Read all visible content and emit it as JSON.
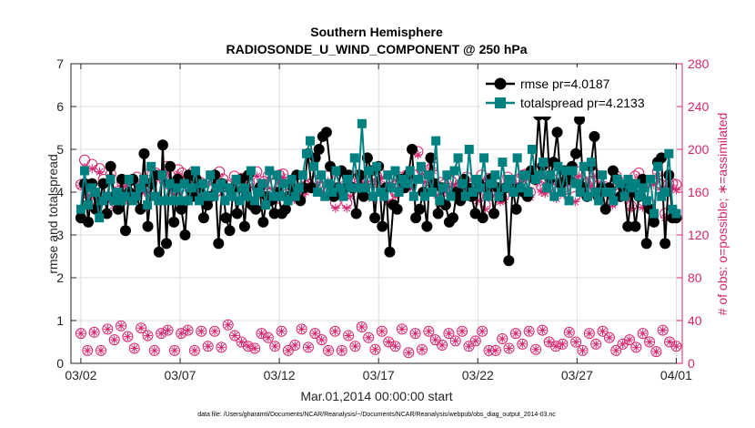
{
  "chart_data": {
    "type": "line",
    "title": "Southern Hemisphere",
    "subtitle": "RADIOSONDE_U_WIND_COMPONENT @ 250 hPa",
    "xlabel": "Mar.01,2014 00:00:00 start",
    "ylabel": "rmse and totalspread",
    "ylabel_right": "# of obs: o=possible; ∗=assimilated",
    "footnote": "data file: /Users/gharamti/Documents/NCAR/Reanalysis/~/Documents/NCAR/Reanalysis/webpub/obs_diag_output_2014-03.nc",
    "x_tick_labels": [
      "03/02",
      "03/07",
      "03/12",
      "03/17",
      "03/22",
      "03/27",
      "04/01"
    ],
    "x_tick_days": [
      1,
      6,
      11,
      16,
      21,
      26,
      31
    ],
    "xlim_days": [
      0.5,
      31.3
    ],
    "ylim": [
      0,
      7
    ],
    "y_ticks": [
      0,
      1,
      2,
      3,
      4,
      5,
      6,
      7
    ],
    "ylim_right": [
      0,
      280
    ],
    "y_ticks_right": [
      0,
      40,
      80,
      120,
      160,
      200,
      240,
      280
    ],
    "grid": true,
    "legend_position": "top-right",
    "colors": {
      "rmse": "#000000",
      "totalspread": "#008080",
      "obs": "#d6246e"
    },
    "series": [
      {
        "name": "rmse pr=4.0187",
        "axis": "left",
        "values": [
          3.4,
          4.2,
          3.3,
          4.2,
          3.6,
          3.8,
          4.2,
          3.5,
          4.6,
          3.9,
          3.6,
          4.3,
          3.1,
          4.0,
          4.3,
          3.9,
          3.6,
          4.9,
          3.2,
          4.2,
          4.4,
          2.6,
          5.1,
          2.8,
          4.6,
          3.3,
          4.3,
          3.6,
          3.0,
          4.4,
          3.9,
          4.3,
          4.1,
          3.4,
          3.7,
          3.9,
          4.4,
          2.8,
          4.2,
          3.4,
          3.1,
          4.1,
          3.5,
          4.3,
          3.2,
          4.4,
          3.7,
          3.6,
          4.1,
          3.3,
          3.9,
          3.8,
          3.5,
          4.0,
          3.5,
          3.6,
          3.9,
          4.1,
          4.4,
          3.8,
          4.1,
          4.9,
          4.1,
          4.8,
          5.0,
          5.3,
          5.4,
          4.6,
          3.9,
          4.1,
          4.5,
          4.1,
          4.4,
          4.1,
          3.5,
          4.4,
          3.9,
          4.8,
          4.5,
          3.4,
          4.6,
          3.2,
          4.1,
          2.6,
          3.7,
          3.6,
          4.3,
          4.1,
          4.4,
          5.0,
          3.4,
          3.6,
          4.0,
          3.2,
          4.8,
          4.2,
          3.5,
          4.1,
          3.7,
          3.3,
          3.4,
          4.0,
          3.8,
          4.3,
          4.1,
          3.9,
          3.5,
          4.2,
          3.4,
          4.1,
          4.3,
          3.5,
          4.1,
          3.9,
          4.1,
          2.4,
          4.1,
          3.6,
          4.1,
          4.0,
          3.9,
          4.5,
          4.3,
          5.8,
          4.6,
          5.8,
          4.3,
          4.7,
          5.4,
          4.2,
          4.5,
          4.3,
          4.6,
          4.9,
          5.7,
          4.1,
          3.9,
          4.6,
          5.3,
          3.9,
          4.1,
          3.6,
          4.1,
          4.5,
          4.3,
          3.9,
          4.1,
          3.2,
          4.0,
          3.2,
          3.9,
          4.3,
          2.8,
          3.6,
          3.3,
          4.7,
          4.8,
          2.8,
          4.4,
          3.4,
          3.4
        ]
      },
      {
        "name": "totalspread pr=4.2133",
        "axis": "left",
        "values": [
          3.6,
          4.5,
          3.7,
          4.1,
          4.0,
          3.4,
          3.8,
          3.9,
          4.3,
          3.8,
          4.0,
          3.8,
          3.9,
          4.3,
          3.8,
          3.9,
          4.1,
          4.3,
          3.7,
          4.6,
          3.9,
          3.8,
          4.4,
          3.8,
          4.2,
          3.8,
          4.1,
          3.8,
          4.2,
          3.8,
          4.1,
          4.5,
          3.8,
          4.2,
          3.9,
          4.4,
          3.9,
          4.1,
          4.2,
          3.8,
          4.1,
          3.9,
          4.3,
          3.8,
          4.1,
          3.9,
          4.5,
          3.8,
          4.0,
          4.2,
          3.7,
          4.5,
          3.9,
          4.4,
          3.9,
          4.2,
          3.8,
          4.3,
          3.9,
          4.1,
          4.4,
          4.9,
          5.2,
          4.6,
          4.0,
          4.4,
          3.9,
          4.2,
          4.0,
          4.5,
          4.1,
          3.9,
          4.3,
          4.1,
          4.8,
          4.1,
          5.6,
          4.1,
          4.5,
          3.9,
          4.6,
          4.0,
          3.9,
          4.4,
          4.1,
          4.5,
          4.0,
          4.3,
          4.2,
          4.5,
          3.9,
          4.3,
          4.6,
          3.9,
          4.4,
          4.0,
          5.2,
          3.8,
          4.1,
          4.4,
          3.9,
          4.5,
          4.8,
          4.2,
          3.9,
          5.0,
          4.0,
          4.3,
          4.1,
          4.8,
          3.9,
          4.2,
          4.4,
          3.9,
          4.7,
          4.1,
          4.3,
          4.0,
          4.8,
          4.1,
          4.4,
          4.0,
          5.0,
          4.3,
          4.4,
          4.7,
          4.1,
          4.4,
          3.9,
          4.6,
          4.0,
          4.5,
          3.8,
          4.5,
          4.2,
          4.0,
          4.6,
          3.9,
          4.7,
          4.0,
          3.8,
          4.4,
          4.0,
          4.0,
          3.8,
          4.3,
          4.2,
          3.9,
          4.3,
          4.1,
          4.2,
          3.9,
          4.1,
          3.8,
          4.3,
          3.5,
          4.6,
          3.9,
          4.0,
          4.9,
          3.6,
          3.5
        ]
      },
      {
        "name": "obs possible",
        "axis": "right",
        "values": [
          167,
          190,
          158,
          186,
          150,
          182,
          172,
          155,
          177,
          151,
          161,
          169,
          170,
          155,
          162,
          174,
          164,
          164,
          165,
          176,
          178,
          176,
          176,
          184,
          166,
          163,
          181,
          178,
          157,
          170,
          179,
          165,
          169,
          154,
          156,
          172,
          160,
          179,
          172,
          167,
          162,
          175,
          166,
          173,
          172,
          169,
          158,
          179,
          166,
          170,
          175,
          168,
          156,
          176,
          177,
          158,
          164,
          156,
          163,
          160,
          166,
          167,
          170,
          171,
          165,
          161,
          175,
          165,
          150,
          171,
          165,
          150,
          161,
          172,
          176,
          167,
          173,
          160,
          171,
          175,
          177,
          170,
          156,
          172,
          160,
          174,
          170,
          176,
          167,
          176,
          198,
          181,
          175,
          181,
          184,
          162,
          169,
          167,
          164,
          170,
          172,
          165,
          167,
          174,
          168,
          162,
          156,
          176,
          148,
          173,
          160,
          170,
          154,
          157,
          174,
          170,
          170,
          172,
          176,
          177,
          160,
          176,
          174,
          165,
          164,
          175,
          172,
          160,
          169,
          162,
          171,
          174,
          156,
          179,
          171,
          168,
          170,
          178,
          166,
          165,
          165,
          163,
          151,
          175,
          159,
          169,
          158,
          147,
          175,
          178,
          149,
          169,
          149,
          171,
          179,
          167,
          140,
          168,
          168,
          167
        ]
      },
      {
        "name": "obs assimilated",
        "axis": "right",
        "values": [
          166,
          183,
          157,
          182,
          147,
          179,
          169,
          153,
          174,
          145,
          157,
          164,
          166,
          152,
          159,
          170,
          161,
          160,
          160,
          173,
          174,
          172,
          172,
          179,
          163,
          158,
          177,
          174,
          153,
          167,
          174,
          161,
          164,
          149,
          152,
          168,
          157,
          175,
          167,
          164,
          157,
          170,
          162,
          170,
          167,
          166,
          152,
          175,
          162,
          164,
          172,
          163,
          152,
          171,
          174,
          153,
          160,
          153,
          158,
          155,
          160,
          163,
          166,
          166,
          160,
          157,
          170,
          160,
          145,
          165,
          158,
          145,
          156,
          168,
          172,
          164,
          168,
          155,
          167,
          170,
          172,
          166,
          151,
          168,
          156,
          170,
          165,
          171,
          164,
          172,
          195,
          176,
          169,
          178,
          180,
          157,
          165,
          161,
          159,
          165,
          167,
          161,
          162,
          170,
          164,
          158,
          152,
          171,
          144,
          169,
          157,
          165,
          151,
          153,
          170,
          166,
          165,
          167,
          171,
          172,
          155,
          173,
          169,
          160,
          159,
          172,
          168,
          154,
          166,
          158,
          167,
          170,
          151,
          175,
          167,
          164,
          166,
          175,
          162,
          161,
          160,
          158,
          148,
          170,
          155,
          164,
          153,
          145,
          170,
          174,
          146,
          165,
          146,
          167,
          175,
          162,
          136,
          164,
          164,
          162
        ]
      },
      {
        "name": "obs possible (lower)",
        "axis": "right",
        "values": [
          28,
          12,
          29,
          12,
          32,
          22,
          35,
          25,
          14,
          33,
          26,
          12,
          28,
          31,
          12,
          28,
          31,
          12,
          30,
          16,
          30,
          15,
          36,
          26,
          20,
          16,
          14,
          28,
          24,
          16,
          30,
          12,
          17,
          32,
          15,
          28,
          22,
          12,
          30,
          12,
          26,
          16,
          34,
          24,
          13,
          30,
          20,
          16,
          32,
          10,
          28,
          13,
          30,
          22,
          17,
          28,
          21,
          30,
          16,
          21,
          30,
          12,
          12,
          23,
          14,
          28,
          18,
          30,
          13,
          31,
          20,
          16,
          18,
          29,
          20,
          12,
          28,
          18,
          30,
          24,
          12,
          18,
          22,
          15,
          28,
          20,
          11,
          31,
          20,
          16
        ]
      },
      {
        "name": "obs assimilated (lower)",
        "axis": "right",
        "values": [
          28,
          12,
          29,
          12,
          32,
          22,
          35,
          25,
          14,
          33,
          26,
          12,
          28,
          31,
          12,
          28,
          31,
          12,
          30,
          16,
          30,
          15,
          36,
          26,
          20,
          16,
          14,
          28,
          24,
          16,
          30,
          12,
          17,
          32,
          15,
          28,
          22,
          12,
          30,
          12,
          26,
          16,
          34,
          24,
          13,
          30,
          20,
          16,
          32,
          10,
          28,
          13,
          30,
          22,
          17,
          28,
          21,
          30,
          16,
          21,
          30,
          12,
          12,
          23,
          14,
          28,
          18,
          30,
          13,
          31,
          20,
          16,
          18,
          29,
          20,
          12,
          28,
          18,
          30,
          24,
          12,
          18,
          22,
          15,
          28,
          20,
          11,
          31,
          20,
          16
        ]
      }
    ]
  }
}
